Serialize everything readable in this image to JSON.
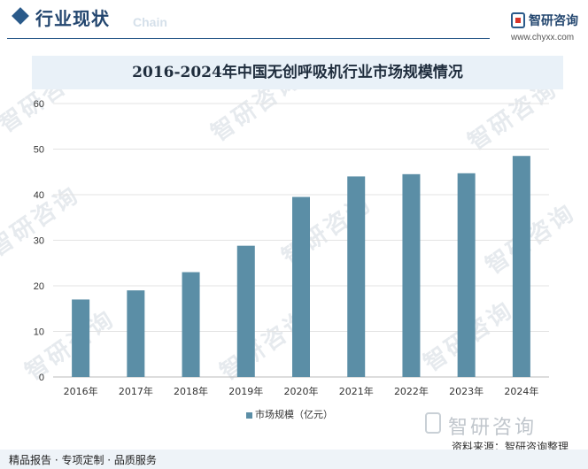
{
  "header": {
    "title": "行业现状",
    "ghost_text": "Chain",
    "brand": "智研咨询",
    "url": "www.chyxx.com"
  },
  "watermark": "智研咨询",
  "colors": {
    "bar": "#5b8ea6",
    "header_accent": "#2a5a8a",
    "title_band": "#e9f1f8",
    "gridline": "#e3e3e3"
  },
  "chart_data": {
    "type": "bar",
    "title": "2016-2024年中国无创呼吸机行业市场规模情况",
    "categories": [
      "2016年",
      "2017年",
      "2018年",
      "2019年",
      "2020年",
      "2021年",
      "2022年",
      "2023年",
      "2024年"
    ],
    "series": [
      {
        "name": "市场规模（亿元）",
        "values": [
          17,
          19,
          23,
          28.8,
          39.5,
          44,
          44.5,
          44.7,
          48.5
        ]
      }
    ],
    "ylim": [
      0,
      60
    ],
    "yticks": [
      "0",
      "10",
      "20",
      "30",
      "40",
      "50",
      "60"
    ],
    "grid": true,
    "legend": "bottom-center"
  },
  "footer": {
    "source": "资料来源：智研咨询整理",
    "brand": "智研咨询",
    "tagline": "精品报告 · 专项定制 · 品质服务"
  }
}
